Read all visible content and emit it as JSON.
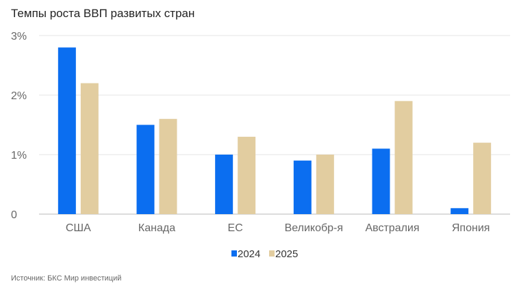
{
  "chart_data": {
    "type": "bar",
    "title": "Темпы роста ВВП развитых стран",
    "categories": [
      "США",
      "Канада",
      "ЕС",
      "Великобр-я",
      "Австралия",
      "Япония"
    ],
    "series": [
      {
        "name": "2024",
        "color": "#0b6ef0",
        "values": [
          2.8,
          1.5,
          1.0,
          0.9,
          1.1,
          0.1
        ]
      },
      {
        "name": "2025",
        "color": "#e2cda0",
        "values": [
          2.2,
          1.6,
          1.3,
          1.0,
          1.9,
          1.2
        ]
      }
    ],
    "ylim": [
      0,
      3
    ],
    "yticks": [
      0,
      1,
      2,
      3
    ],
    "ytick_labels": [
      "0",
      "1%",
      "2%",
      "3%"
    ],
    "xlabel": "",
    "ylabel": "",
    "grid": true,
    "legend": "bottom"
  },
  "source": "Источник: БКС Мир инвестиций"
}
